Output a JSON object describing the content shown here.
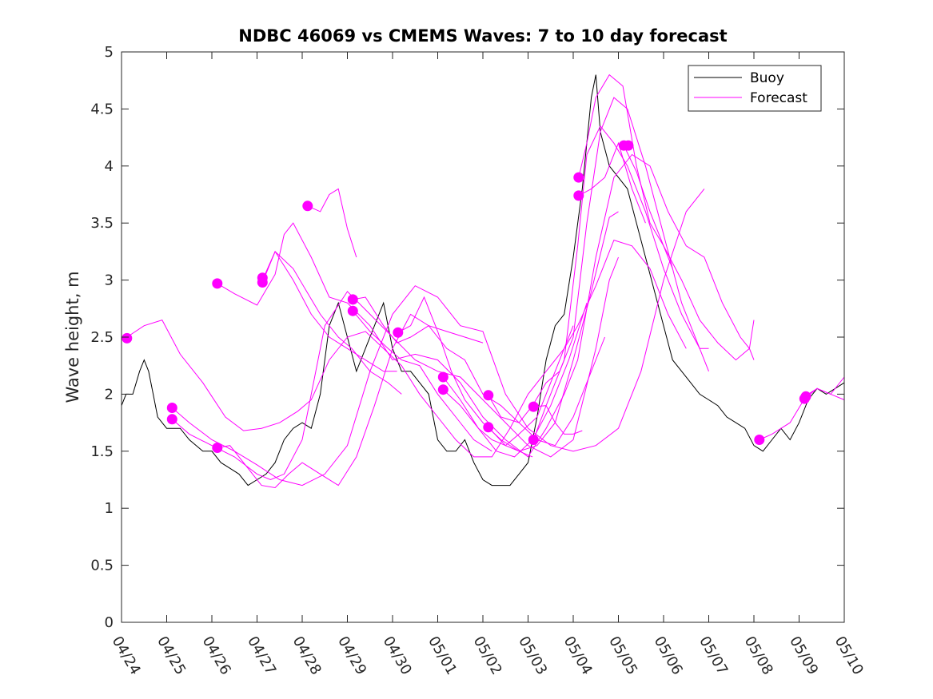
{
  "chart_data": {
    "type": "line",
    "title": "NDBC 46069 vs CMEMS Waves: 7 to 10 day forecast",
    "xlabel": "",
    "ylabel": "Wave height, m",
    "xlim": [
      0,
      16
    ],
    "ylim": [
      0,
      5
    ],
    "x_ticks": [
      0,
      1,
      2,
      3,
      4,
      5,
      6,
      7,
      8,
      9,
      10,
      11,
      12,
      13,
      14,
      15,
      16
    ],
    "x_tick_labels": [
      "04/24",
      "04/25",
      "04/26",
      "04/27",
      "04/28",
      "04/29",
      "04/30",
      "05/01",
      "05/02",
      "05/03",
      "05/04",
      "05/05",
      "05/06",
      "05/07",
      "05/08",
      "05/09",
      "05/10"
    ],
    "y_ticks": [
      0,
      0.5,
      1,
      1.5,
      2,
      2.5,
      3,
      3.5,
      4,
      4.5,
      5
    ],
    "y_tick_labels": [
      "0",
      "0.5",
      "1",
      "1.5",
      "2",
      "2.5",
      "3",
      "3.5",
      "4",
      "4.5",
      "5"
    ],
    "grid": false,
    "legend_position": "top-right",
    "legend": [
      {
        "label": "Buoy",
        "color": "#000000"
      },
      {
        "label": "Forecast",
        "color": "#ff00ff"
      }
    ],
    "series": [
      {
        "name": "Buoy",
        "color": "#000000",
        "x": [
          0.0,
          0.1,
          0.25,
          0.4,
          0.5,
          0.6,
          0.7,
          0.8,
          1.0,
          1.3,
          1.5,
          1.8,
          2.0,
          2.2,
          2.4,
          2.6,
          2.8,
          3.0,
          3.2,
          3.4,
          3.6,
          3.8,
          4.0,
          4.2,
          4.4,
          4.6,
          4.8,
          5.0,
          5.2,
          5.4,
          5.6,
          5.8,
          6.0,
          6.2,
          6.4,
          6.6,
          6.8,
          7.0,
          7.2,
          7.4,
          7.6,
          7.8,
          8.0,
          8.2,
          8.4,
          8.6,
          8.8,
          9.0,
          9.2,
          9.4,
          9.6,
          9.8,
          10.0,
          10.2,
          10.4,
          10.5,
          10.6,
          10.8,
          11.0,
          11.2,
          11.4,
          11.6,
          11.8,
          12.0,
          12.2,
          12.4,
          12.6,
          12.8,
          13.0,
          13.2,
          13.4,
          13.6,
          13.8,
          14.0,
          14.2,
          14.4,
          14.6,
          14.8,
          15.0,
          15.2,
          15.4,
          15.6,
          15.8,
          16.0
        ],
        "y": [
          1.9,
          2.0,
          2.0,
          2.2,
          2.3,
          2.2,
          2.0,
          1.8,
          1.7,
          1.7,
          1.6,
          1.5,
          1.5,
          1.4,
          1.35,
          1.3,
          1.2,
          1.25,
          1.3,
          1.4,
          1.6,
          1.7,
          1.75,
          1.7,
          2.0,
          2.6,
          2.8,
          2.5,
          2.2,
          2.4,
          2.6,
          2.8,
          2.4,
          2.2,
          2.2,
          2.1,
          2.0,
          1.6,
          1.5,
          1.5,
          1.6,
          1.4,
          1.25,
          1.2,
          1.2,
          1.2,
          1.3,
          1.4,
          1.8,
          2.3,
          2.6,
          2.7,
          3.2,
          3.8,
          4.6,
          4.8,
          4.3,
          4.0,
          3.9,
          3.8,
          3.5,
          3.2,
          2.9,
          2.6,
          2.3,
          2.2,
          2.1,
          2.0,
          1.95,
          1.9,
          1.8,
          1.75,
          1.7,
          1.55,
          1.5,
          1.6,
          1.7,
          1.6,
          1.75,
          1.95,
          2.05,
          2.0,
          2.05,
          2.1
        ]
      },
      {
        "name": "Forecast",
        "color": "#ff00ff",
        "x": [
          0.12,
          0.5,
          0.9,
          1.3,
          1.8,
          2.3,
          2.7,
          3.1,
          3.5,
          3.9,
          4.2,
          4.6,
          5.0,
          5.4,
          5.8,
          6.2,
          6.6,
          7.0,
          7.4,
          7.8,
          8.2,
          8.6,
          9.0,
          9.4,
          9.8,
          10.1,
          10.5,
          10.9,
          11.3,
          11.7,
          12.1,
          12.5
        ],
        "y": [
          2.5,
          2.6,
          2.65,
          2.35,
          2.1,
          1.8,
          1.68,
          1.7,
          1.75,
          1.85,
          1.95,
          2.3,
          2.5,
          2.55,
          2.4,
          2.25,
          2.0,
          1.8,
          1.6,
          1.45,
          1.45,
          1.7,
          2.0,
          2.2,
          2.4,
          2.6,
          2.95,
          3.35,
          3.3,
          3.1,
          2.7,
          2.4
        ]
      },
      {
        "name": "Forecast",
        "color": "#ff00ff",
        "x": [
          1.12,
          1.5,
          2.0,
          2.5,
          3.0,
          3.5,
          4.0,
          4.5,
          5.0,
          5.5,
          6.0,
          6.5,
          7.0,
          7.5,
          8.0,
          8.5,
          9.0,
          9.5,
          10.0,
          10.5,
          11.0,
          11.5,
          12.0,
          12.5,
          12.9
        ],
        "y": [
          1.88,
          1.75,
          1.6,
          1.5,
          1.38,
          1.25,
          1.2,
          1.3,
          1.55,
          2.2,
          2.7,
          2.95,
          2.85,
          2.6,
          2.55,
          2.0,
          1.7,
          1.55,
          1.5,
          1.55,
          1.7,
          2.2,
          3.0,
          3.6,
          3.8
        ]
      },
      {
        "name": "Forecast",
        "color": "#ff00ff",
        "x": [
          1.12,
          1.5,
          2.0,
          2.5,
          3.0,
          3.3,
          3.6,
          4.0,
          4.5,
          5.0,
          5.5,
          6.0,
          6.5,
          7.0,
          7.5,
          8.0,
          8.5,
          9.0,
          9.5,
          10.0,
          10.5,
          10.8,
          11.0
        ],
        "y": [
          1.78,
          1.65,
          1.55,
          1.45,
          1.3,
          1.25,
          1.3,
          1.6,
          2.6,
          2.9,
          2.7,
          2.5,
          2.3,
          2.2,
          2.15,
          1.95,
          1.75,
          1.55,
          1.45,
          1.6,
          2.4,
          3.0,
          3.2
        ]
      },
      {
        "name": "Forecast",
        "color": "#ff00ff",
        "x": [
          2.12,
          2.5,
          3.0,
          3.4,
          3.6,
          3.8,
          4.2,
          4.6,
          5.0,
          5.5,
          6.0,
          6.5,
          7.0,
          7.5,
          8.0,
          8.5,
          9.0,
          9.4,
          9.8,
          10.1,
          10.5,
          10.9,
          11.3,
          11.7,
          12.1,
          12.5,
          12.9,
          13.3,
          13.7,
          13.9,
          14.0
        ],
        "y": [
          2.97,
          2.88,
          2.78,
          3.05,
          3.4,
          3.5,
          3.2,
          2.85,
          2.8,
          2.6,
          2.3,
          2.35,
          2.3,
          2.1,
          1.8,
          1.6,
          1.45,
          1.7,
          2.0,
          2.3,
          3.2,
          3.9,
          4.1,
          4.0,
          3.6,
          3.3,
          3.2,
          2.8,
          2.5,
          2.4,
          2.3
        ]
      },
      {
        "name": "Forecast",
        "color": "#ff00ff",
        "x": [
          2.12,
          2.4,
          2.8,
          3.1,
          3.4,
          3.7,
          4.0,
          4.4,
          4.8,
          5.2,
          5.6,
          6.0,
          6.4,
          6.8,
          7.2,
          7.6,
          8.0,
          8.4,
          8.8,
          9.2,
          9.6,
          10.0,
          10.4,
          10.7
        ],
        "y": [
          1.53,
          1.55,
          1.35,
          1.2,
          1.18,
          1.3,
          1.4,
          1.3,
          1.2,
          1.45,
          1.9,
          2.4,
          2.7,
          2.6,
          2.4,
          2.3,
          2.0,
          1.9,
          1.75,
          1.6,
          1.55,
          1.8,
          2.2,
          2.5
        ]
      },
      {
        "name": "Forecast",
        "color": "#ff00ff",
        "x": [
          3.12,
          3.4,
          3.8,
          4.2,
          4.6,
          5.0,
          5.4,
          5.8,
          6.1
        ],
        "y": [
          3.0,
          3.25,
          3.0,
          2.7,
          2.5,
          2.4,
          2.3,
          2.2,
          2.2
        ]
      },
      {
        "name": "Forecast",
        "color": "#ff00ff",
        "x": [
          3.12,
          3.4,
          3.8,
          4.1,
          4.4,
          4.8,
          5.1,
          5.5,
          5.9,
          6.2
        ],
        "y": [
          2.98,
          3.25,
          3.1,
          2.9,
          2.7,
          2.5,
          2.4,
          2.2,
          2.1,
          2.0
        ]
      },
      {
        "name": "Forecast",
        "color": "#ff00ff",
        "x": [
          4.12,
          4.4,
          4.6,
          4.8,
          5.0,
          5.2
        ],
        "y": [
          3.65,
          3.6,
          3.75,
          3.8,
          3.45,
          3.2
        ]
      },
      {
        "name": "Forecast",
        "color": "#ff00ff",
        "x": [
          5.12,
          5.4,
          5.8,
          6.1,
          6.4,
          6.8,
          7.2,
          7.6,
          8.0
        ],
        "y": [
          2.83,
          2.85,
          2.6,
          2.45,
          2.5,
          2.6,
          2.55,
          2.5,
          2.45
        ]
      },
      {
        "name": "Forecast",
        "color": "#ff00ff",
        "x": [
          5.12,
          5.5,
          5.9,
          6.2,
          6.6,
          7.0,
          7.4,
          7.8,
          8.2
        ],
        "y": [
          2.73,
          2.55,
          2.4,
          2.3,
          2.25,
          2.0,
          1.8,
          1.6,
          1.5
        ]
      },
      {
        "name": "Forecast",
        "color": "#ff00ff",
        "x": [
          6.12,
          6.4,
          6.7,
          7.0,
          7.3,
          7.6,
          8.0,
          8.4,
          8.8,
          9.2,
          9.6,
          10.0,
          10.4,
          10.8,
          11.0
        ],
        "y": [
          2.54,
          2.6,
          2.85,
          2.55,
          2.2,
          1.95,
          1.75,
          1.6,
          1.5,
          1.55,
          1.75,
          2.3,
          2.9,
          3.55,
          3.6
        ]
      },
      {
        "name": "Forecast",
        "color": "#ff00ff",
        "x": [
          7.12,
          7.5,
          7.9,
          8.3,
          8.7,
          9.1,
          9.5,
          9.9,
          10.3
        ],
        "y": [
          2.15,
          1.95,
          1.7,
          1.5,
          1.45,
          1.6,
          1.9,
          2.3,
          2.8
        ]
      },
      {
        "name": "Forecast",
        "color": "#ff00ff",
        "x": [
          7.12,
          7.5,
          7.9,
          8.2,
          8.5,
          8.8,
          9.2,
          9.6,
          10.0
        ],
        "y": [
          2.04,
          1.9,
          1.7,
          1.6,
          1.55,
          1.65,
          1.8,
          2.2,
          2.6
        ]
      },
      {
        "name": "Forecast",
        "color": "#ff00ff",
        "x": [
          8.12,
          8.4,
          8.8,
          9.1,
          9.4,
          9.7,
          10.0,
          10.3,
          10.6,
          10.9,
          11.2,
          11.6,
          12.0,
          12.4,
          12.8,
          13.0
        ],
        "y": [
          1.99,
          1.8,
          1.75,
          1.9,
          2.1,
          2.2,
          2.5,
          3.5,
          4.3,
          4.6,
          4.5,
          4.0,
          3.4,
          2.8,
          2.4,
          2.2
        ]
      },
      {
        "name": "Forecast",
        "color": "#ff00ff",
        "x": [
          8.12,
          8.5,
          8.8,
          9.1
        ],
        "y": [
          1.71,
          1.55,
          1.5,
          1.45
        ]
      },
      {
        "name": "Forecast",
        "color": "#ff00ff",
        "x": [
          9.12,
          9.4,
          9.6,
          9.8,
          10.0,
          10.2
        ],
        "y": [
          1.89,
          1.9,
          1.75,
          1.65,
          1.65,
          1.68
        ]
      },
      {
        "name": "Forecast",
        "color": "#ff00ff",
        "x": [
          9.12,
          9.4,
          9.8,
          10.1,
          10.3,
          10.6,
          10.9,
          11.2,
          11.6,
          12.0,
          12.4,
          12.8,
          13.0
        ],
        "y": [
          1.6,
          1.9,
          2.3,
          3.3,
          4.1,
          4.35,
          4.2,
          4.0,
          3.6,
          3.1,
          2.7,
          2.4,
          2.4
        ]
      },
      {
        "name": "Forecast",
        "color": "#ff00ff",
        "x": [
          10.12,
          10.3,
          10.5,
          10.8,
          11.1,
          11.4,
          11.7,
          12.0,
          12.4,
          12.8,
          13.2,
          13.6,
          13.9,
          14.0
        ],
        "y": [
          3.9,
          4.2,
          4.6,
          4.8,
          4.7,
          4.0,
          3.5,
          3.3,
          3.0,
          2.65,
          2.45,
          2.3,
          2.4,
          2.65
        ]
      },
      {
        "name": "Forecast",
        "color": "#ff00ff",
        "x": [
          10.12,
          10.4,
          10.7,
          11.0,
          11.3,
          11.6
        ],
        "y": [
          3.74,
          3.8,
          3.9,
          4.2,
          3.8,
          3.5
        ]
      },
      {
        "name": "Forecast",
        "color": "#ff00ff",
        "x": [
          11.12,
          11.4,
          11.7,
          12.0,
          12.2
        ],
        "y": [
          4.18,
          3.95,
          3.6,
          3.3,
          3.1
        ]
      },
      {
        "name": "Forecast",
        "color": "#ff00ff",
        "x": [
          14.12,
          14.4,
          14.8,
          15.12,
          15.4,
          15.7,
          16.0
        ],
        "y": [
          1.6,
          1.65,
          1.75,
          1.96,
          2.05,
          2.0,
          1.95
        ]
      },
      {
        "name": "Forecast",
        "color": "#ff00ff",
        "x": [
          15.12,
          15.4,
          15.7,
          16.0
        ],
        "y": [
          1.98,
          2.05,
          2.0,
          2.15
        ]
      }
    ],
    "forecast_markers": [
      {
        "x": 0.12,
        "y": 2.49
      },
      {
        "x": 1.12,
        "y": 1.88
      },
      {
        "x": 1.12,
        "y": 1.78
      },
      {
        "x": 2.12,
        "y": 2.97
      },
      {
        "x": 2.12,
        "y": 1.53
      },
      {
        "x": 3.12,
        "y": 3.02
      },
      {
        "x": 3.12,
        "y": 2.98
      },
      {
        "x": 4.12,
        "y": 3.65
      },
      {
        "x": 5.12,
        "y": 2.83
      },
      {
        "x": 5.12,
        "y": 2.73
      },
      {
        "x": 6.12,
        "y": 2.54
      },
      {
        "x": 7.12,
        "y": 2.15
      },
      {
        "x": 7.12,
        "y": 2.04
      },
      {
        "x": 8.12,
        "y": 1.99
      },
      {
        "x": 8.12,
        "y": 1.71
      },
      {
        "x": 9.12,
        "y": 1.89
      },
      {
        "x": 9.12,
        "y": 1.6
      },
      {
        "x": 10.12,
        "y": 3.9
      },
      {
        "x": 10.12,
        "y": 3.74
      },
      {
        "x": 11.12,
        "y": 4.18
      },
      {
        "x": 11.22,
        "y": 4.18
      },
      {
        "x": 14.12,
        "y": 1.6
      },
      {
        "x": 15.12,
        "y": 1.96
      },
      {
        "x": 15.15,
        "y": 1.98
      }
    ]
  }
}
